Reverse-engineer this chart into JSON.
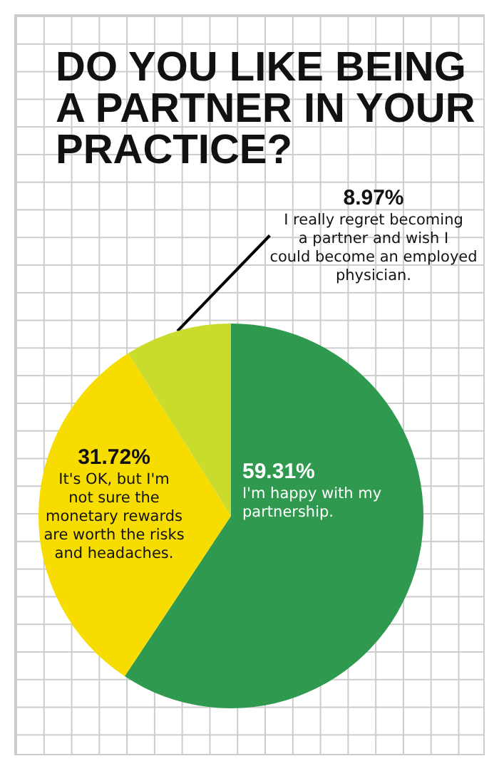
{
  "chart_data": {
    "type": "pie",
    "title": "DO YOU LIKE BEING A PARTNER IN YOUR PRACTICE?",
    "categories": [
      "I'm happy with my partnership.",
      "It's OK, but I'm not sure the monetary rewards are worth the risks and headaches.",
      "I really regret becoming a partner and wish I could become an employed physician."
    ],
    "values": [
      59.31,
      31.72,
      8.97
    ],
    "value_labels": [
      "59.31%",
      "31.72%",
      "8.97%"
    ],
    "colors": [
      "#2f9a4f",
      "#f7dc00",
      "#c9dc2c"
    ]
  }
}
